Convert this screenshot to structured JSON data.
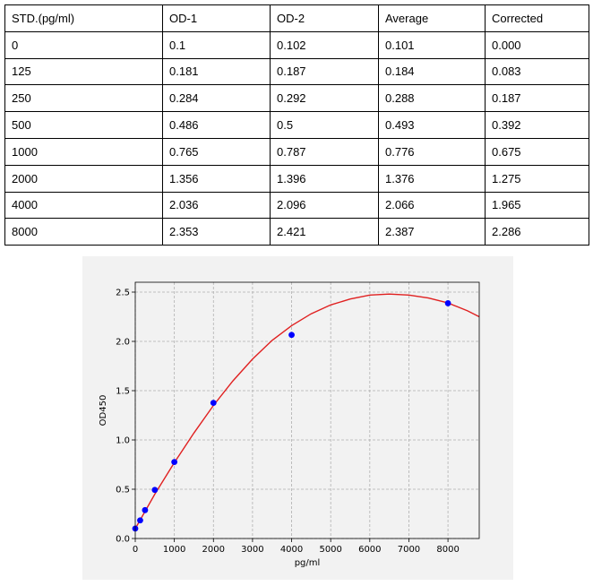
{
  "table": {
    "headers": [
      "STD.(pg/ml)",
      "OD-1",
      "OD-2",
      "Average",
      "Corrected"
    ],
    "rows": [
      [
        "0",
        "0.1",
        "0.102",
        "0.101",
        "0.000"
      ],
      [
        "125",
        "0.181",
        "0.187",
        "0.184",
        "0.083"
      ],
      [
        "250",
        "0.284",
        "0.292",
        "0.288",
        "0.187"
      ],
      [
        "500",
        "0.486",
        "0.5",
        "0.493",
        "0.392"
      ],
      [
        "1000",
        "0.765",
        "0.787",
        "0.776",
        "0.675"
      ],
      [
        "2000",
        "1.356",
        "1.396",
        "1.376",
        "1.275"
      ],
      [
        "4000",
        "2.036",
        "2.096",
        "2.066",
        "1.965"
      ],
      [
        "8000",
        "2.353",
        "2.421",
        "2.387",
        "2.286"
      ]
    ]
  },
  "chart_data": {
    "type": "scatter",
    "title": "",
    "xlabel": "pg/ml",
    "ylabel": "OD450",
    "xlim": [
      0,
      8800
    ],
    "ylim": [
      0,
      2.6
    ],
    "x_ticks": [
      0,
      1000,
      2000,
      3000,
      4000,
      5000,
      6000,
      7000,
      8000
    ],
    "x_tick_labels": [
      "0",
      "1000",
      "2000",
      "3000",
      "4000",
      "5000",
      "6000",
      "7000",
      "8000"
    ],
    "y_ticks": [
      0,
      0.5,
      1.0,
      1.5,
      2.0,
      2.5
    ],
    "y_tick_labels": [
      "0.0",
      "0.5",
      "1.0",
      "1.5",
      "2.0",
      "2.5"
    ],
    "grid": true,
    "series": [
      {
        "kind": "points",
        "x": [
          0,
          125,
          250,
          500,
          1000,
          2000,
          4000,
          8000
        ],
        "y": [
          0.101,
          0.184,
          0.288,
          0.493,
          0.776,
          1.376,
          2.066,
          2.387
        ],
        "color": "#0000ff"
      },
      {
        "kind": "fit-line",
        "x": [
          0,
          500,
          1000,
          1500,
          2000,
          2500,
          3000,
          3500,
          4000,
          4500,
          5000,
          5500,
          6000,
          6500,
          7000,
          7500,
          8000,
          8500,
          8800
        ],
        "y": [
          0.1,
          0.45,
          0.77,
          1.07,
          1.35,
          1.6,
          1.82,
          2.01,
          2.16,
          2.28,
          2.37,
          2.43,
          2.47,
          2.48,
          2.47,
          2.44,
          2.39,
          2.31,
          2.25
        ],
        "color": "#e02020"
      }
    ]
  }
}
